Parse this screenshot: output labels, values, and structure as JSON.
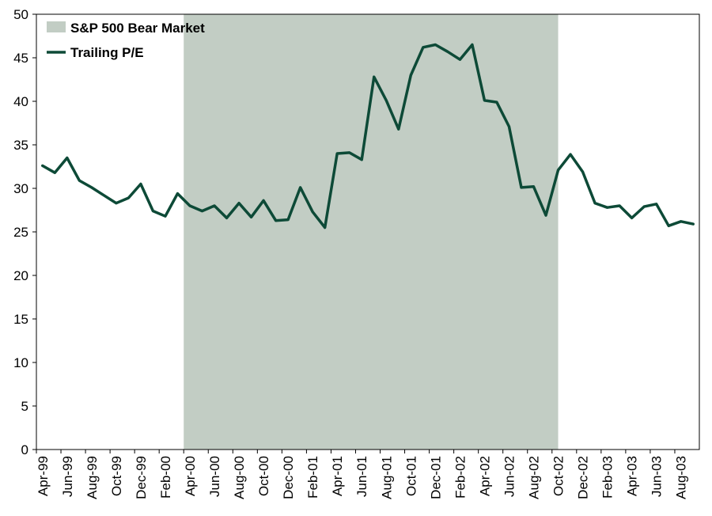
{
  "chart_data": {
    "type": "line",
    "title": "",
    "xlabel": "",
    "ylabel": "",
    "ylim": [
      0,
      50
    ],
    "yticks": [
      0,
      5,
      10,
      15,
      20,
      25,
      30,
      35,
      40,
      45,
      50
    ],
    "grid": false,
    "legend_position": "top-left",
    "x": [
      "Apr-99",
      "May-99",
      "Jun-99",
      "Jul-99",
      "Aug-99",
      "Sep-99",
      "Oct-99",
      "Nov-99",
      "Dec-99",
      "Jan-00",
      "Feb-00",
      "Mar-00",
      "Apr-00",
      "May-00",
      "Jun-00",
      "Jul-00",
      "Aug-00",
      "Sep-00",
      "Oct-00",
      "Nov-00",
      "Dec-00",
      "Jan-01",
      "Feb-01",
      "Mar-01",
      "Apr-01",
      "May-01",
      "Jun-01",
      "Jul-01",
      "Aug-01",
      "Sep-01",
      "Oct-01",
      "Nov-01",
      "Dec-01",
      "Jan-02",
      "Feb-02",
      "Mar-02",
      "Apr-02",
      "May-02",
      "Jun-02",
      "Jul-02",
      "Aug-02",
      "Sep-02",
      "Oct-02",
      "Nov-02",
      "Dec-02",
      "Jan-03",
      "Feb-03",
      "Mar-03",
      "Apr-03",
      "May-03",
      "Jun-03",
      "Jul-03",
      "Aug-03",
      "Sep-03"
    ],
    "xtick_labels": [
      "Apr-99",
      "Jun-99",
      "Aug-99",
      "Oct-99",
      "Dec-99",
      "Feb-00",
      "Apr-00",
      "Jun-00",
      "Aug-00",
      "Oct-00",
      "Dec-00",
      "Feb-01",
      "Apr-01",
      "Jun-01",
      "Aug-01",
      "Oct-01",
      "Dec-01",
      "Feb-02",
      "Apr-02",
      "Jun-02",
      "Aug-02",
      "Oct-02",
      "Dec-02",
      "Feb-03",
      "Apr-03",
      "Jun-03",
      "Aug-03"
    ],
    "series": [
      {
        "name": "Trailing P/E",
        "color": "#0d4a37",
        "values": [
          32.6,
          31.8,
          33.5,
          30.9,
          30.1,
          29.2,
          28.3,
          28.9,
          30.5,
          27.4,
          26.8,
          29.4,
          28.0,
          27.4,
          28.0,
          26.6,
          28.3,
          26.7,
          28.6,
          26.3,
          26.4,
          30.1,
          27.3,
          25.5,
          34.0,
          34.1,
          33.3,
          42.8,
          40.1,
          36.8,
          43.0,
          46.2,
          46.5,
          45.7,
          44.8,
          46.5,
          40.1,
          39.9,
          37.1,
          30.1,
          30.2,
          26.9,
          32.1,
          33.9,
          31.9,
          28.3,
          27.8,
          28.0,
          26.6,
          27.9,
          28.2,
          25.7,
          26.2,
          25.9
        ]
      }
    ],
    "shaded_region": {
      "name": "S&P 500 Bear Market",
      "color": "#c2cdc4",
      "start": "Mar-00",
      "end": "Oct-02"
    }
  }
}
